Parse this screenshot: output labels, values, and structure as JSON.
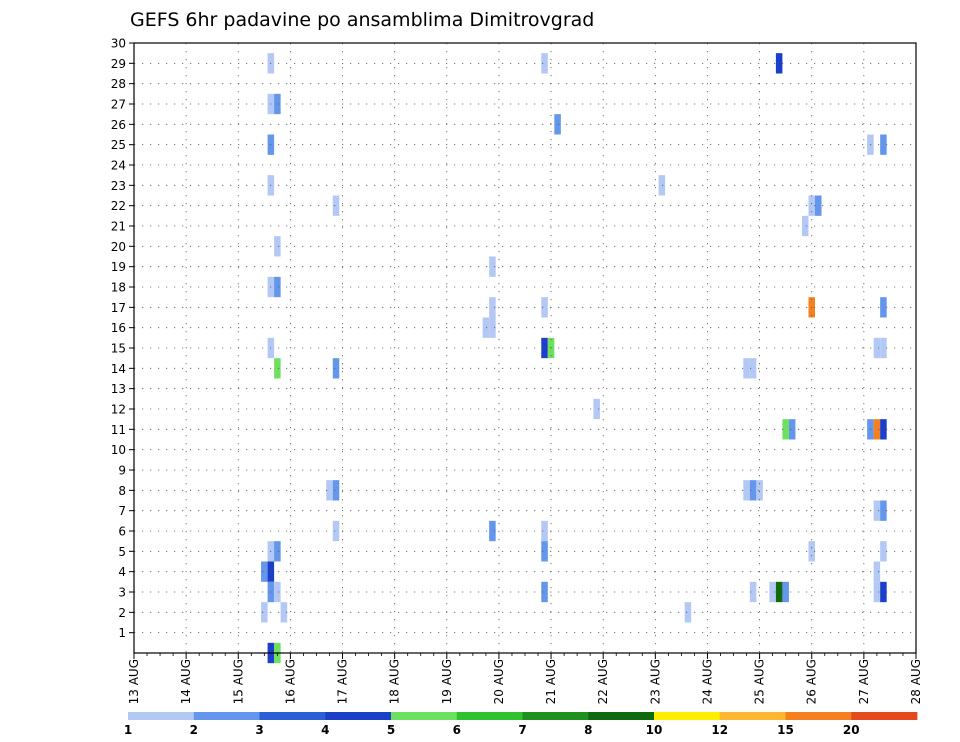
{
  "chart_data": {
    "type": "heatmap",
    "title": "GEFS 6hr padavine po ansamblima Dimitrovgrad",
    "xlabel": "",
    "ylabel": "",
    "x_categories": [
      "13 AUG",
      "14 AUG",
      "15 AUG",
      "16 AUG",
      "17 AUG",
      "18 AUG",
      "19 AUG",
      "20 AUG",
      "21 AUG",
      "22 AUG",
      "23 AUG",
      "24 AUG",
      "25 AUG",
      "26 AUG",
      "27 AUG",
      "28 AUG"
    ],
    "xlim": [
      0,
      60
    ],
    "steps_per_day": 4,
    "y_ticks": [
      "1",
      "2",
      "3",
      "4",
      "5",
      "6",
      "7",
      "8",
      "9",
      "10",
      "11",
      "12",
      "13",
      "14",
      "15",
      "16",
      "17",
      "18",
      "19",
      "20",
      "21",
      "22",
      "23",
      "24",
      "25",
      "26",
      "27",
      "28",
      "29",
      "30"
    ],
    "ylim": [
      0,
      30
    ],
    "grid": true,
    "colorbar": {
      "placement": "bottom",
      "labels": [
        "1",
        "2",
        "3",
        "4",
        "5",
        "6",
        "7",
        "8",
        "10",
        "12",
        "15",
        "20"
      ],
      "colors": [
        "#b4c8f5",
        "#6496eb",
        "#2c5fd6",
        "#1b3fc8",
        "#6ee060",
        "#2fc12f",
        "#1f8f1f",
        "#0f6a0f",
        "#ffee00",
        "#fdb830",
        "#f58020",
        "#e44a1e",
        "#c0201a",
        "#6e1010"
      ]
    },
    "points": [
      {
        "x": 10.5,
        "y": 29,
        "level": 0
      },
      {
        "x": 10.5,
        "y": 27,
        "level": 0
      },
      {
        "x": 11,
        "y": 27,
        "level": 1
      },
      {
        "x": 10.5,
        "y": 25,
        "level": 1
      },
      {
        "x": 10.5,
        "y": 23,
        "level": 0
      },
      {
        "x": 11,
        "y": 20,
        "level": 0
      },
      {
        "x": 10.5,
        "y": 18,
        "level": 0
      },
      {
        "x": 11,
        "y": 18,
        "level": 1
      },
      {
        "x": 10.5,
        "y": 15,
        "level": 0
      },
      {
        "x": 11,
        "y": 14,
        "level": 4
      },
      {
        "x": 10.5,
        "y": 5,
        "level": 0
      },
      {
        "x": 11,
        "y": 5,
        "level": 1
      },
      {
        "x": 10,
        "y": 4,
        "level": 1
      },
      {
        "x": 10.5,
        "y": 4,
        "level": 3
      },
      {
        "x": 10.5,
        "y": 3,
        "level": 1
      },
      {
        "x": 11,
        "y": 3,
        "level": 0
      },
      {
        "x": 10,
        "y": 2,
        "level": 0
      },
      {
        "x": 11.5,
        "y": 2,
        "level": 0
      },
      {
        "x": 10.5,
        "y": 0,
        "level": 3
      },
      {
        "x": 11,
        "y": 0,
        "level": 4
      },
      {
        "x": 15.5,
        "y": 22,
        "level": 0
      },
      {
        "x": 15.5,
        "y": 14,
        "level": 1
      },
      {
        "x": 15,
        "y": 8,
        "level": 0
      },
      {
        "x": 15.5,
        "y": 8,
        "level": 1
      },
      {
        "x": 15.5,
        "y": 6,
        "level": 0
      },
      {
        "x": 27.5,
        "y": 19,
        "level": 0
      },
      {
        "x": 27.5,
        "y": 17,
        "level": 0
      },
      {
        "x": 27,
        "y": 16,
        "level": 0
      },
      {
        "x": 27.5,
        "y": 16,
        "level": 0
      },
      {
        "x": 27.5,
        "y": 6,
        "level": 1
      },
      {
        "x": 31.5,
        "y": 29,
        "level": 0
      },
      {
        "x": 32.5,
        "y": 26,
        "level": 1
      },
      {
        "x": 31.5,
        "y": 17,
        "level": 0
      },
      {
        "x": 31.5,
        "y": 15,
        "level": 3
      },
      {
        "x": 32,
        "y": 15,
        "level": 4
      },
      {
        "x": 31.5,
        "y": 6,
        "level": 0
      },
      {
        "x": 31.5,
        "y": 5,
        "level": 1
      },
      {
        "x": 31.5,
        "y": 3,
        "level": 1
      },
      {
        "x": 35.5,
        "y": 12,
        "level": 0
      },
      {
        "x": 40.5,
        "y": 23,
        "level": 0
      },
      {
        "x": 42.5,
        "y": 2,
        "level": 0
      },
      {
        "x": 47,
        "y": 14,
        "level": 0
      },
      {
        "x": 47.5,
        "y": 14,
        "level": 0
      },
      {
        "x": 47,
        "y": 8,
        "level": 0
      },
      {
        "x": 47.5,
        "y": 8,
        "level": 1
      },
      {
        "x": 48,
        "y": 8,
        "level": 0
      },
      {
        "x": 47.5,
        "y": 3,
        "level": 0
      },
      {
        "x": 49,
        "y": 3,
        "level": 0
      },
      {
        "x": 49.5,
        "y": 3,
        "level": 7
      },
      {
        "x": 50,
        "y": 3,
        "level": 1
      },
      {
        "x": 49.5,
        "y": 29,
        "level": 3
      },
      {
        "x": 50,
        "y": 11,
        "level": 4
      },
      {
        "x": 50.5,
        "y": 11,
        "level": 1
      },
      {
        "x": 51.5,
        "y": 21,
        "level": 0
      },
      {
        "x": 52,
        "y": 22,
        "level": 0
      },
      {
        "x": 52.5,
        "y": 22,
        "level": 1
      },
      {
        "x": 52,
        "y": 17,
        "level": 10
      },
      {
        "x": 52,
        "y": 5,
        "level": 0
      },
      {
        "x": 56.5,
        "y": 25,
        "level": 0
      },
      {
        "x": 57.5,
        "y": 25,
        "level": 1
      },
      {
        "x": 57.5,
        "y": 17,
        "level": 1
      },
      {
        "x": 57,
        "y": 15,
        "level": 0
      },
      {
        "x": 57.5,
        "y": 15,
        "level": 0
      },
      {
        "x": 56.5,
        "y": 11,
        "level": 1
      },
      {
        "x": 57,
        "y": 11,
        "level": 10
      },
      {
        "x": 57.5,
        "y": 11,
        "level": 3
      },
      {
        "x": 57,
        "y": 7,
        "level": 0
      },
      {
        "x": 57.5,
        "y": 7,
        "level": 1
      },
      {
        "x": 57.5,
        "y": 5,
        "level": 0
      },
      {
        "x": 57,
        "y": 4,
        "level": 0
      },
      {
        "x": 57,
        "y": 3,
        "level": 0
      },
      {
        "x": 57.5,
        "y": 3,
        "level": 3
      }
    ]
  }
}
